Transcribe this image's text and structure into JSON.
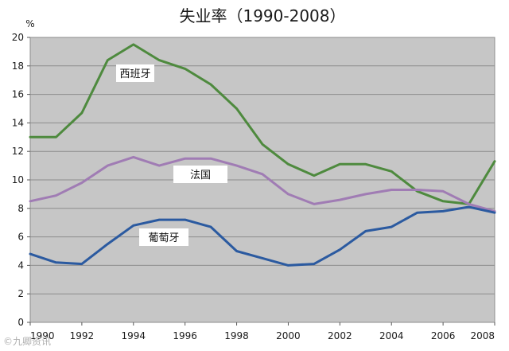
{
  "chart_data": {
    "type": "line",
    "title": "失业率（1990-2008）",
    "ylabel": "%",
    "xlabel": "",
    "ylim": [
      0,
      20
    ],
    "xlim": [
      1990,
      2008
    ],
    "y_ticks": [
      "0",
      "2",
      "4",
      "6",
      "8",
      "10",
      "12",
      "14",
      "16",
      "18",
      "20"
    ],
    "x_ticks": [
      "1990",
      "1992",
      "1994",
      "1996",
      "1998",
      "2000",
      "2002",
      "2004",
      "2006",
      "2008"
    ],
    "grid": "horizontal",
    "x": [
      1990,
      1991,
      1992,
      1993,
      1994,
      1995,
      1996,
      1997,
      1998,
      1999,
      2000,
      2001,
      2002,
      2003,
      2004,
      2005,
      2006,
      2007,
      2008
    ],
    "series": [
      {
        "name": "西班牙",
        "color": "#4e8a3e",
        "values": [
          13.0,
          13.0,
          14.7,
          18.4,
          19.5,
          18.4,
          17.8,
          16.7,
          15.0,
          12.5,
          11.1,
          10.3,
          11.1,
          11.1,
          10.6,
          9.2,
          8.5,
          8.3,
          11.3
        ]
      },
      {
        "name": "法国",
        "color": "#a07cb4",
        "values": [
          8.5,
          8.9,
          9.8,
          11.0,
          11.6,
          11.0,
          11.5,
          11.5,
          11.0,
          10.4,
          9.0,
          8.3,
          8.6,
          9.0,
          9.3,
          9.3,
          9.2,
          8.3,
          7.8
        ]
      },
      {
        "name": "葡萄牙",
        "color": "#2b5aa0",
        "values": [
          4.8,
          4.2,
          4.1,
          5.5,
          6.8,
          7.2,
          7.2,
          6.7,
          5.0,
          4.5,
          4.0,
          4.1,
          5.1,
          6.4,
          6.7,
          7.7,
          7.8,
          8.1,
          7.7
        ]
      }
    ]
  },
  "watermark": "©九卿资讯"
}
